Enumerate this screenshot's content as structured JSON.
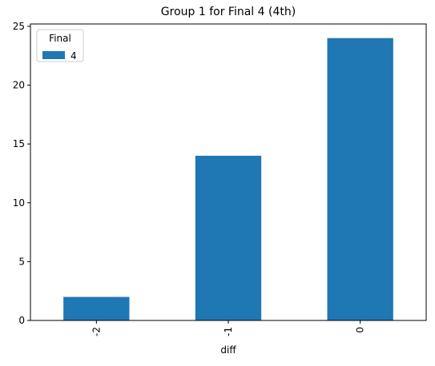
{
  "chart_data": {
    "type": "bar",
    "title": "Group 1 for Final 4 (4th)",
    "x_label": "diff",
    "categories": [
      "-2",
      "-1",
      "0"
    ],
    "legend_title": "Final",
    "legend_position": "upper left",
    "series": [
      {
        "name": "4",
        "color": "#1f77b4",
        "values": [
          2,
          14,
          24
        ]
      }
    ],
    "ylim": [
      0,
      25.2
    ],
    "yticks": [
      0,
      5,
      10,
      15,
      20,
      25
    ]
  }
}
